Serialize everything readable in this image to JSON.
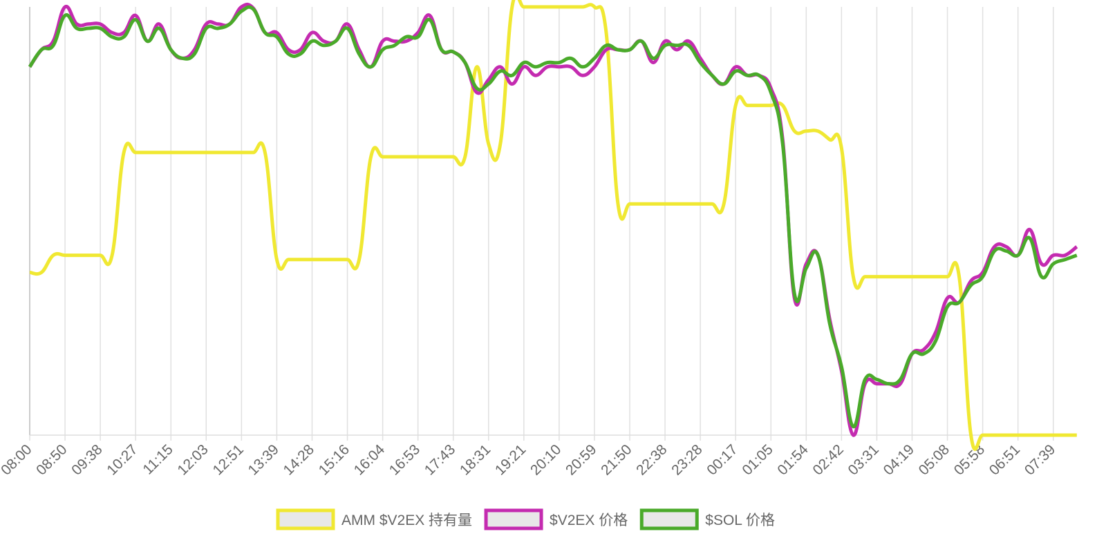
{
  "chart_data": {
    "type": "line",
    "categories": [
      "08:00",
      null,
      null,
      "08:50",
      null,
      null,
      "09:38",
      null,
      null,
      "10:27",
      null,
      null,
      "11:15",
      null,
      null,
      "12:03",
      null,
      null,
      "12:51",
      null,
      null,
      "13:39",
      null,
      null,
      "14:28",
      null,
      null,
      "15:16",
      null,
      null,
      "16:04",
      null,
      null,
      "16:53",
      null,
      null,
      "17:43",
      null,
      null,
      "18:31",
      null,
      null,
      "19:21",
      null,
      null,
      "20:10",
      null,
      null,
      "20:59",
      null,
      null,
      "21:50",
      null,
      null,
      "22:38",
      null,
      null,
      "23:28",
      null,
      null,
      "00:17",
      null,
      null,
      "01:05",
      null,
      null,
      "01:54",
      null,
      null,
      "02:42",
      null,
      null,
      "03:31",
      null,
      null,
      "04:19",
      null,
      null,
      "05:08",
      null,
      null,
      "05:58",
      null,
      null,
      "06:51",
      null,
      null,
      "07:39",
      null,
      null
    ],
    "series": [
      {
        "name": "AMM $V2EX 持有量",
        "color": "#f0e832",
        "values": [
          38,
          38,
          42,
          42,
          42,
          42,
          42,
          42,
          66,
          66,
          66,
          66,
          66,
          66,
          66,
          66,
          66,
          66,
          66,
          66,
          66,
          41,
          41,
          41,
          41,
          41,
          41,
          41,
          41,
          65,
          65,
          65,
          65,
          65,
          65,
          65,
          65,
          65,
          86,
          68,
          68,
          100,
          100,
          100,
          100,
          100,
          100,
          100,
          100,
          94,
          54,
          54,
          54,
          54,
          54,
          54,
          54,
          54,
          54,
          54,
          77,
          77,
          77,
          77,
          77,
          71,
          71,
          71,
          69,
          67,
          37,
          37,
          37,
          37,
          37,
          37,
          37,
          37,
          37,
          37,
          0,
          0,
          0,
          0,
          0,
          0,
          0,
          0,
          0,
          0
        ]
      },
      {
        "name": "$V2EX 价格",
        "color": "#c42bb0",
        "values": [
          86,
          90,
          92,
          100,
          96,
          96,
          96,
          94,
          94,
          98,
          92,
          96,
          90,
          88,
          90,
          96,
          96,
          96,
          100,
          99.7,
          94,
          94,
          90,
          90,
          94,
          92,
          92,
          96,
          90,
          86,
          92,
          92,
          92,
          94,
          98,
          90,
          89.5,
          87,
          80,
          83,
          86,
          82,
          86,
          84,
          86,
          86,
          86,
          84,
          86,
          90,
          90,
          90,
          92,
          87,
          92,
          90,
          92,
          88,
          84,
          82,
          86,
          84,
          84,
          81,
          69,
          32,
          40,
          42,
          27,
          15,
          0,
          12,
          12,
          12,
          12,
          19,
          20,
          24,
          32,
          31,
          36,
          38,
          44,
          44,
          42,
          48,
          40,
          42,
          42,
          44
        ]
      },
      {
        "name": "$SOL 价格",
        "color": "#4aaa2a",
        "values": [
          86,
          90,
          91,
          98,
          95,
          95,
          95,
          93,
          93,
          97,
          92,
          95,
          90,
          88,
          89,
          95,
          95,
          96,
          99,
          99.5,
          94,
          93,
          89,
          89,
          92,
          91,
          92,
          95,
          89,
          86,
          90,
          91,
          93,
          93,
          97,
          90,
          89.5,
          87,
          81,
          82,
          85,
          84,
          87,
          86,
          87,
          87,
          88,
          86,
          88,
          91,
          90,
          90,
          92,
          88,
          91,
          91,
          91,
          87,
          84,
          82,
          85,
          84,
          84,
          80,
          68,
          33,
          39,
          42,
          26,
          16,
          2,
          13,
          13,
          12,
          13,
          19,
          19,
          22,
          30,
          31,
          35,
          37,
          43,
          43,
          42,
          46,
          37,
          40,
          41,
          42
        ]
      }
    ],
    "ylim": [
      0,
      100
    ],
    "grid": true,
    "legend": "bottom"
  }
}
